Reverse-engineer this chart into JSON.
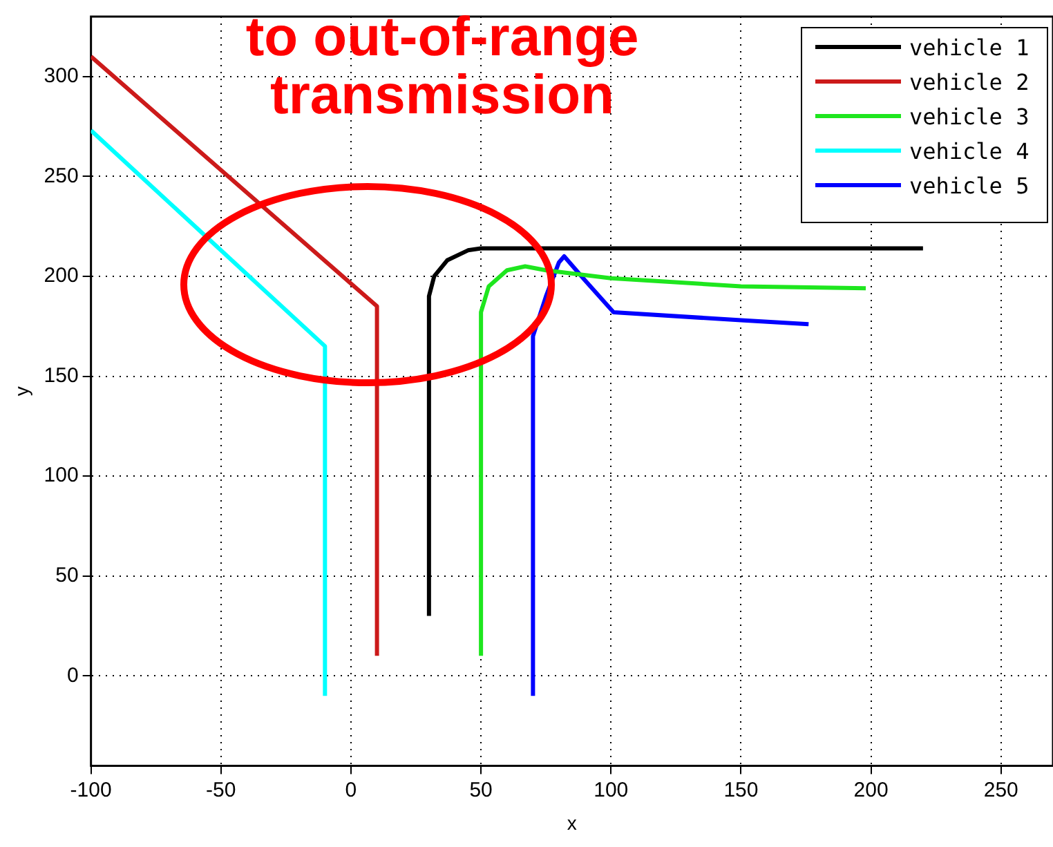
{
  "chart_data": {
    "type": "line",
    "xlabel": "x",
    "ylabel": "y",
    "annotations": [
      "to out-of-range transmission"
    ],
    "xlim": [
      -100,
      270
    ],
    "xticks": [
      -100,
      -50,
      0,
      50,
      100,
      150,
      200,
      250
    ],
    "ylim": [
      -45,
      330
    ],
    "yticks": [
      0,
      50,
      100,
      150,
      200,
      250,
      300
    ],
    "grid": true,
    "legend": "top right",
    "marker": "none",
    "line_style": "solid",
    "series": [
      {
        "name": "vehicle 1",
        "color": "#000000",
        "x": [
          30,
          30,
          32,
          37,
          45,
          50,
          220
        ],
        "values": [
          30,
          190,
          200,
          208,
          213,
          214,
          214
        ]
      },
      {
        "name": "vehicle 2",
        "color": "#cc1a1a",
        "x": [
          10,
          10,
          -100
        ],
        "values": [
          10,
          185,
          310
        ]
      },
      {
        "name": "vehicle 3",
        "color": "#1ee61e",
        "x": [
          50,
          50,
          53,
          60,
          67,
          75,
          100,
          150,
          198
        ],
        "values": [
          10,
          182,
          195,
          203,
          205,
          203,
          199,
          195,
          194
        ]
      },
      {
        "name": "vehicle 4",
        "color": "#00ffff",
        "x": [
          -10,
          -10,
          -100
        ],
        "values": [
          -10,
          165,
          273
        ]
      },
      {
        "name": "vehicle 5",
        "color": "#0000ff",
        "x": [
          70,
          70,
          75,
          80,
          82,
          90,
          101,
          150,
          176
        ],
        "values": [
          -10,
          170,
          190,
          207,
          210,
          198,
          182,
          178,
          176
        ]
      }
    ]
  }
}
